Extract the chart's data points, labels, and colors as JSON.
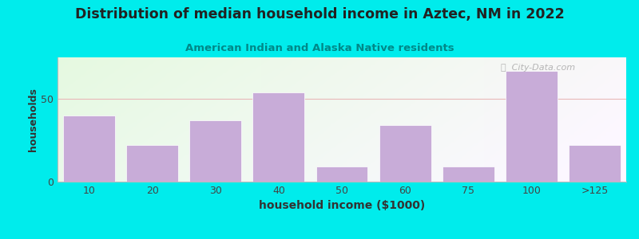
{
  "title": "Distribution of median household income in Aztec, NM in 2022",
  "subtitle": "American Indian and Alaska Native residents",
  "xlabel": "household income ($1000)",
  "ylabel": "households",
  "categories": [
    "10",
    "20",
    "30",
    "40",
    "50",
    "60",
    "75",
    "100",
    ">125"
  ],
  "values": [
    40,
    22,
    37,
    54,
    9,
    34,
    9,
    67,
    22
  ],
  "bar_color": "#c8acd8",
  "bar_edge_color": "#ffffff",
  "bg_outer": "#00ecec",
  "grid_color": "#e8b8b8",
  "title_color": "#222222",
  "subtitle_color": "#008888",
  "axis_label_color": "#333333",
  "tick_color": "#444444",
  "ylim": [
    0,
    75
  ],
  "yticks": [
    0,
    50
  ],
  "watermark": "ⓘ  City-Data.com"
}
